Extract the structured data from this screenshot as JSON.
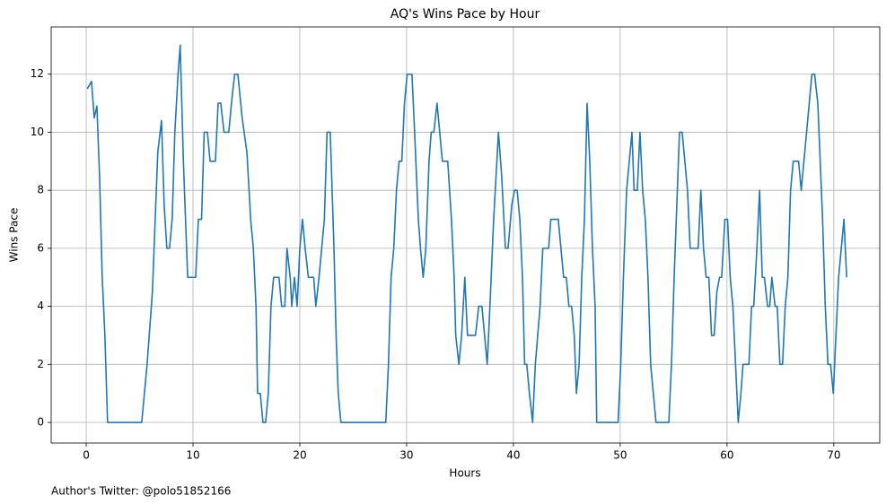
{
  "chart_data": {
    "type": "line",
    "title": "AQ's Wins Pace by Hour",
    "xlabel": "Hours",
    "ylabel": "Wins Pace",
    "annotation": "Author's Twitter: @polo51852166",
    "color": "#1f77b4",
    "grid": true,
    "xlim": [
      -3.28,
      74.3
    ],
    "ylim": [
      -0.71,
      13.63
    ],
    "xticks": [
      0,
      10,
      20,
      30,
      40,
      50,
      60,
      70
    ],
    "yticks": [
      0,
      2,
      4,
      6,
      8,
      10,
      12
    ],
    "x": [
      0.1,
      0.5,
      0.75,
      1.0,
      1.25,
      1.5,
      1.75,
      2.0,
      5.2,
      5.7,
      6.2,
      6.7,
      7.05,
      7.3,
      7.55,
      7.8,
      8.05,
      8.3,
      8.6,
      8.8,
      9.1,
      9.3,
      9.5,
      10.25,
      10.5,
      10.8,
      11.05,
      11.35,
      11.6,
      12.1,
      12.35,
      12.6,
      12.9,
      13.35,
      13.6,
      13.9,
      14.2,
      14.6,
      15.05,
      15.4,
      15.65,
      15.9,
      16.05,
      16.3,
      16.55,
      16.8,
      17.05,
      17.3,
      17.55,
      18.05,
      18.3,
      18.6,
      18.8,
      19.1,
      19.25,
      19.5,
      19.75,
      20.0,
      20.25,
      20.5,
      20.8,
      21.3,
      21.5,
      21.8,
      22.3,
      22.55,
      22.85,
      23.2,
      23.4,
      23.6,
      23.85,
      28.05,
      28.3,
      28.55,
      28.8,
      29.05,
      29.3,
      29.55,
      29.8,
      30.05,
      30.5,
      30.75,
      31.1,
      31.3,
      31.55,
      31.8,
      32.1,
      32.3,
      32.55,
      32.85,
      33.1,
      33.35,
      33.85,
      34.2,
      34.45,
      34.6,
      34.9,
      35.15,
      35.45,
      35.7,
      36.45,
      36.75,
      37.05,
      37.3,
      37.55,
      37.8,
      38.15,
      38.6,
      38.9,
      39.25,
      39.5,
      39.85,
      40.1,
      40.35,
      40.6,
      40.85,
      41.05,
      41.25,
      41.5,
      41.8,
      42.05,
      42.5,
      42.75,
      43.3,
      43.5,
      44.2,
      44.45,
      44.7,
      44.95,
      45.2,
      45.45,
      45.7,
      45.9,
      46.15,
      46.4,
      46.65,
      46.9,
      47.15,
      47.4,
      47.65,
      47.8,
      49.8,
      50.05,
      50.3,
      50.6,
      50.85,
      51.1,
      51.3,
      51.6,
      51.85,
      52.1,
      52.35,
      52.6,
      52.85,
      53.1,
      53.35,
      54.55,
      54.8,
      55.05,
      55.55,
      55.8,
      56.3,
      56.55,
      57.3,
      57.55,
      57.8,
      58.05,
      58.3,
      58.55,
      58.8,
      59.05,
      59.3,
      59.5,
      59.8,
      60.05,
      60.3,
      60.55,
      60.8,
      61.05,
      61.3,
      61.5,
      62.05,
      62.3,
      62.5,
      62.8,
      63.05,
      63.3,
      63.5,
      63.8,
      64.0,
      64.2,
      64.5,
      64.7,
      64.95,
      65.2,
      65.45,
      65.7,
      65.95,
      66.2,
      66.7,
      66.95,
      67.2,
      67.45,
      67.95,
      68.2,
      68.5,
      68.95,
      69.2,
      69.45,
      69.7,
      69.95,
      70.2,
      70.45,
      70.7,
      70.95,
      71.2
    ],
    "values": [
      11.5,
      11.75,
      10.5,
      10.9,
      8.5,
      5,
      3,
      0,
      0,
      2,
      4.5,
      9.3,
      10.4,
      7.5,
      6,
      6,
      7,
      10,
      12,
      13,
      9,
      7,
      5,
      5,
      7,
      7,
      10,
      10,
      9,
      9,
      11,
      11,
      10,
      10,
      11,
      12,
      12,
      10.5,
      9.3,
      7,
      6,
      4,
      1,
      1,
      0,
      0,
      1,
      4,
      5,
      5,
      4,
      4,
      6,
      5,
      4,
      5,
      4,
      6,
      7,
      6,
      5,
      5,
      4,
      5,
      7,
      10,
      10,
      6,
      3,
      1,
      0,
      0,
      2,
      5,
      6,
      8,
      9,
      9,
      11,
      12,
      12,
      10,
      7,
      6,
      5,
      6,
      9,
      10,
      10,
      11,
      10,
      9,
      9,
      7,
      5,
      3,
      2,
      3,
      5,
      3,
      3,
      4,
      4,
      3,
      2,
      4,
      7,
      10,
      8.5,
      6,
      6,
      7.5,
      8,
      8,
      7,
      5,
      2,
      2,
      1,
      0,
      2,
      4,
      6,
      6,
      7,
      7,
      6,
      5,
      5,
      4,
      4,
      3,
      1,
      2,
      5,
      7,
      11,
      9,
      6,
      4,
      0,
      0,
      2,
      5,
      8,
      9,
      10,
      8,
      8,
      10,
      8,
      7,
      5,
      2,
      1,
      0,
      0,
      2,
      5,
      10,
      10,
      8,
      6,
      6,
      8,
      6,
      5,
      5,
      3,
      3,
      4.5,
      5,
      5,
      7,
      7,
      5,
      4,
      2,
      0,
      1,
      2,
      2,
      4,
      4,
      6,
      8,
      5,
      5,
      4,
      4,
      5,
      4,
      4,
      2,
      2,
      4,
      5,
      8,
      9,
      9,
      8,
      9,
      10,
      12,
      12,
      11,
      7,
      4,
      2,
      2,
      1,
      3,
      5,
      6,
      7,
      5
    ]
  }
}
